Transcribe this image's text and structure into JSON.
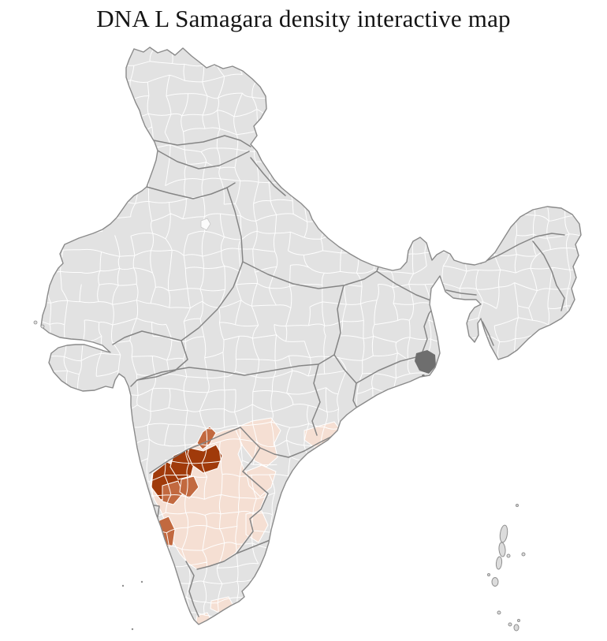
{
  "title": "DNA L Samagara density interactive map",
  "map": {
    "name": "india-district-density-choropleth",
    "colors": {
      "background": "#ffffff",
      "no_data": "#e2e2e2",
      "density_low": "#f5dfd3",
      "density_medium": "#c2693f",
      "density_high": "#a03a0a",
      "district_border": "#ffffff",
      "state_border": "#858585",
      "country_border": "#8a8a8a",
      "dense_cluster": "#6e6e6e",
      "island_fill": "#dcdcdc",
      "island_stroke": "#8f8f8f",
      "white_district": "#fcfcfc",
      "white_district_border": "#c8c8c8"
    }
  }
}
